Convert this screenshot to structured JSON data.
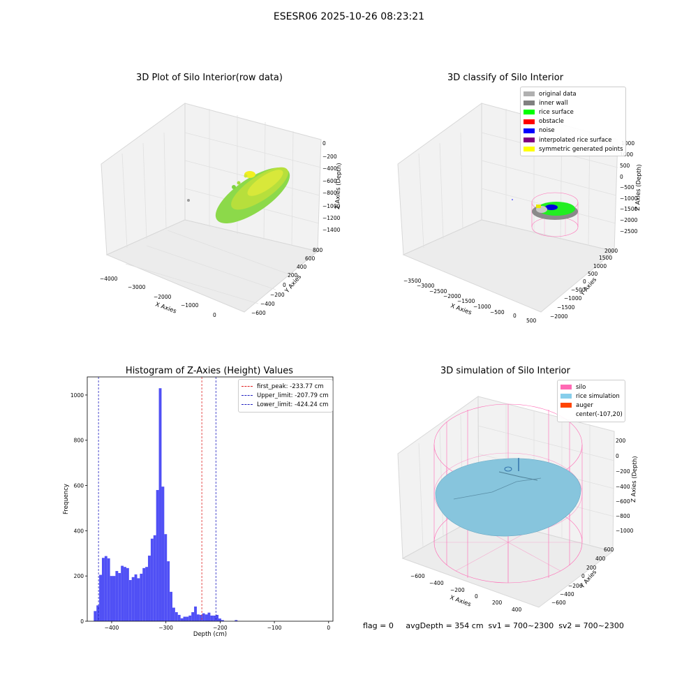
{
  "figure": {
    "suptitle": "ESESR06 2025-10-26 08:23:21",
    "status_text": "flag = 0     avgDepth = 354 cm  sv1 = 700~2300  sv2 = 700~2300"
  },
  "colors": {
    "histogram_bar": "#5050f5",
    "first_peak_line": "#e02020",
    "limit_lines": "#2020c0",
    "silo_wire": "#ff69b4",
    "rice_simulation": "#87c5dd",
    "grain_point_cloud": [
      "#6fd23f",
      "#c5e23a",
      "#f0f020"
    ]
  },
  "chart_data": [
    {
      "type": "scatter",
      "projection": "3d",
      "title": "3D Plot of Silo Interior(row data)",
      "xlabel": "X Axies",
      "ylabel": "Y Axies",
      "zlabel": "Z Axies (Depth)",
      "x_ticks": [
        "−4000",
        "−3000",
        "−2000",
        "−1000",
        "0"
      ],
      "y_ticks": [
        "−600",
        "−400",
        "−200",
        "0",
        "200",
        "400",
        "600",
        "800"
      ],
      "z_ticks": [
        "0",
        "−200",
        "−400",
        "−600",
        "−800",
        "−1000",
        "−1200",
        "−1400"
      ],
      "grid": true
    },
    {
      "type": "scatter",
      "projection": "3d",
      "title": "3D classify of Silo Interior",
      "xlabel": "X Axies",
      "ylabel": "Y Axies",
      "zlabel": "Z Axies (Depth)",
      "x_ticks": [
        "−3500",
        "−3000",
        "−2500",
        "−2000",
        "−1500",
        "−1000",
        "−500",
        "0",
        "500"
      ],
      "y_ticks": [
        "−2000",
        "−1500",
        "−1000",
        "−500",
        "0",
        "500",
        "1000",
        "1500",
        "2000"
      ],
      "z_ticks": [
        "1000",
        "1000",
        "500",
        "0",
        "−500",
        "−1000",
        "−1500",
        "−2000",
        "−2500"
      ],
      "legend_position": "upper-right",
      "legend": [
        {
          "label": "original data",
          "color": "#b0b0b0"
        },
        {
          "label": "inner wall",
          "color": "#808080"
        },
        {
          "label": "rice surface",
          "color": "#00ff00"
        },
        {
          "label": "obstacle",
          "color": "#ff0000"
        },
        {
          "label": "noise",
          "color": "#0000ff"
        },
        {
          "label": "interpolated rice surface",
          "color": "#800080"
        },
        {
          "label": "symmetric generated points",
          "color": "#ffff00"
        }
      ],
      "grid": true
    },
    {
      "type": "bar",
      "title": "Histogram of Z-Axies (Height) Values",
      "xlabel": "Depth (cm)",
      "ylabel": "Frequency",
      "xlim": [
        -445,
        8
      ],
      "ylim": [
        0,
        1080
      ],
      "x_ticks": [
        -400,
        -300,
        -200,
        -100,
        0
      ],
      "x_tick_labels": [
        "−400",
        "−300",
        "−200",
        "−100",
        "0"
      ],
      "y_ticks": [
        0,
        200,
        400,
        600,
        800,
        1000
      ],
      "bin_start": -433,
      "bin_width": 5,
      "values": [
        45,
        70,
        205,
        280,
        288,
        278,
        200,
        200,
        222,
        213,
        245,
        240,
        235,
        182,
        195,
        207,
        190,
        210,
        235,
        240,
        290,
        365,
        380,
        580,
        1030,
        595,
        385,
        265,
        130,
        60,
        40,
        28,
        13,
        20,
        20,
        25,
        40,
        65,
        30,
        28,
        35,
        30,
        38,
        25,
        25,
        28,
        12,
        5,
        0,
        0,
        0,
        0,
        5
      ],
      "vlines": [
        {
          "name": "first_peak",
          "x": -233.77,
          "style": "red-dashed"
        },
        {
          "name": "Upper_limit",
          "x": -207.79,
          "style": "blue-dashed"
        },
        {
          "name": "Lower_limit",
          "x": -424.24,
          "style": "blue-dashed"
        }
      ],
      "legend_position": "upper-right",
      "legend": [
        {
          "label": "first_peak: -233.77 cm",
          "color": "#e02020"
        },
        {
          "label": "Upper_limit: -207.79 cm",
          "color": "#2020c0"
        },
        {
          "label": "Lower_limit: -424.24 cm",
          "color": "#2020c0"
        }
      ],
      "grid": false
    },
    {
      "type": "area",
      "projection": "3d",
      "title": "3D simulation of Silo Interior",
      "xlabel": "X Axies",
      "ylabel": "Y Axies",
      "zlabel": "Z Axies (Depth)",
      "x_ticks": [
        "−600",
        "−400",
        "−200",
        "0",
        "200",
        "400"
      ],
      "y_ticks": [
        "−600",
        "−400",
        "−200",
        "0",
        "200",
        "400",
        "600"
      ],
      "z_ticks": [
        "200",
        "0",
        "−200",
        "−400",
        "−600",
        "−800",
        "−1000"
      ],
      "legend_position": "upper-right",
      "legend": [
        {
          "label": "silo",
          "color": "#ff69b4"
        },
        {
          "label": "rice simulation",
          "color": "#87ceeb"
        },
        {
          "label": "auger",
          "color": "#ff4500"
        },
        {
          "label": "center(-107,20)",
          "color": ""
        }
      ],
      "grid": true
    }
  ]
}
